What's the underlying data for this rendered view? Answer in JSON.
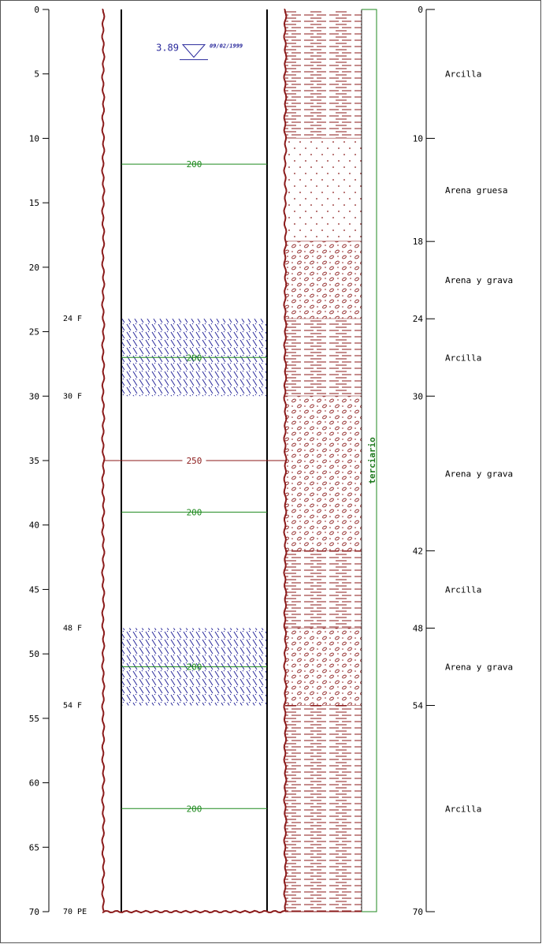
{
  "depth_axis": {
    "ticks": [
      "0",
      "5",
      "10",
      "15",
      "20",
      "25",
      "30",
      "35",
      "40",
      "45",
      "50",
      "55",
      "60",
      "65",
      "70"
    ],
    "min": 0,
    "max": 70
  },
  "water_level": {
    "depth": 3.89,
    "value_label": "3.89",
    "date": "09/02/1999"
  },
  "screen_markers": [
    {
      "depth": 24,
      "label": "24 F"
    },
    {
      "depth": 30,
      "label": "30 F"
    },
    {
      "depth": 48,
      "label": "48 F"
    },
    {
      "depth": 54,
      "label": "54 F"
    },
    {
      "depth": 70,
      "label": "70 PE"
    }
  ],
  "screens": [
    {
      "from": 24,
      "to": 30
    },
    {
      "from": 48,
      "to": 54
    }
  ],
  "casing_diameters": [
    {
      "depth": 12,
      "label": "200",
      "color": "#1f8a1f"
    },
    {
      "depth": 27,
      "label": "200",
      "color": "#1f8a1f"
    },
    {
      "depth": 35,
      "label": "250",
      "color": "#8b1a1a"
    },
    {
      "depth": 39,
      "label": "200",
      "color": "#1f8a1f"
    },
    {
      "depth": 51,
      "label": "200",
      "color": "#1f8a1f"
    },
    {
      "depth": 62,
      "label": "200",
      "color": "#1f8a1f"
    }
  ],
  "lithology": [
    {
      "from": 0,
      "to": 10,
      "pattern": "clay",
      "label": "Arcilla"
    },
    {
      "from": 10,
      "to": 18,
      "pattern": "sand",
      "label": "Arena gruesa"
    },
    {
      "from": 18,
      "to": 24,
      "pattern": "gravel",
      "label": "Arena y grava"
    },
    {
      "from": 24,
      "to": 30,
      "pattern": "clay",
      "label": "Arcilla"
    },
    {
      "from": 30,
      "to": 42,
      "pattern": "gravel",
      "label": "Arena y grava"
    },
    {
      "from": 42,
      "to": 48,
      "pattern": "clay",
      "label": "Arcilla"
    },
    {
      "from": 48,
      "to": 54,
      "pattern": "gravel",
      "label": "Arena y grava"
    },
    {
      "from": 54,
      "to": 70,
      "pattern": "clay",
      "label": "Arcilla"
    }
  ],
  "boundary_ticks": [
    "0",
    "10",
    "18",
    "24",
    "30",
    "42",
    "48",
    "54",
    "70"
  ],
  "stratigraphic_unit": {
    "label": "terciario",
    "from": 0,
    "to": 70,
    "color": "#1f8a1f"
  },
  "colors": {
    "borehole": "#8b1a1a",
    "screen": "#2a2a9c",
    "casing": "#000000"
  }
}
